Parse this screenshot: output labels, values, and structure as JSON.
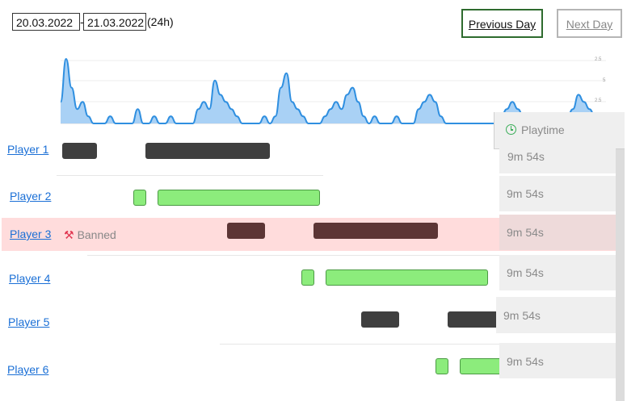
{
  "date_range": {
    "start": "20.03.2022",
    "separator": "-",
    "end": "21.03.2022",
    "suffix": "(24h)"
  },
  "nav": {
    "previous_label": "Previous Day",
    "next_label": "Next Day"
  },
  "activity_chart": {
    "type": "area",
    "color": "#2f8fe0",
    "fill": "#a9d1f5",
    "ytick_labels": [
      "2.5",
      "5",
      "2.5"
    ],
    "values": [
      3,
      9,
      5,
      2,
      3,
      1,
      0,
      0,
      0,
      1,
      0,
      0,
      0,
      0,
      2,
      0,
      0,
      1,
      0,
      0,
      1,
      0,
      0,
      0,
      0,
      2,
      3,
      2,
      6,
      4,
      3,
      2,
      1,
      0,
      0,
      0,
      0,
      1,
      0,
      1,
      5,
      7,
      3,
      2,
      1,
      0,
      0,
      0,
      1,
      2,
      3,
      2,
      4,
      5,
      3,
      1,
      0,
      1,
      0,
      0,
      0,
      1,
      0,
      0,
      0,
      2,
      3,
      4,
      3,
      1,
      0,
      0,
      0,
      0,
      0,
      0,
      0,
      0,
      0,
      0,
      1,
      2,
      3,
      2,
      1,
      0,
      0,
      0,
      0,
      0,
      0,
      0,
      1,
      2,
      4,
      3,
      2,
      1,
      0,
      0
    ]
  },
  "playtime_header": {
    "label": "Playtime",
    "icon": "clock-icon",
    "icon_color": "#3cae5a"
  },
  "banned_label": "Banned",
  "banned_icon": "gavel-icon",
  "colors": {
    "banned_row": "#ffdcdc",
    "link": "#1a6fd6",
    "online": "#8cec7c",
    "idle": "#3f3f3f",
    "banned_session": "#5c3535"
  },
  "players": [
    {
      "name": "Player 1",
      "playtime": "9m 54s"
    },
    {
      "name": "Player 2",
      "playtime": "9m 54s"
    },
    {
      "name": "Player 3",
      "playtime": "9m 54s",
      "banned": true
    },
    {
      "name": "Player 4",
      "playtime": "9m 54s"
    },
    {
      "name": "Player 5",
      "playtime": "9m 54s"
    },
    {
      "name": "Player 6",
      "playtime": "9m 54s"
    }
  ]
}
